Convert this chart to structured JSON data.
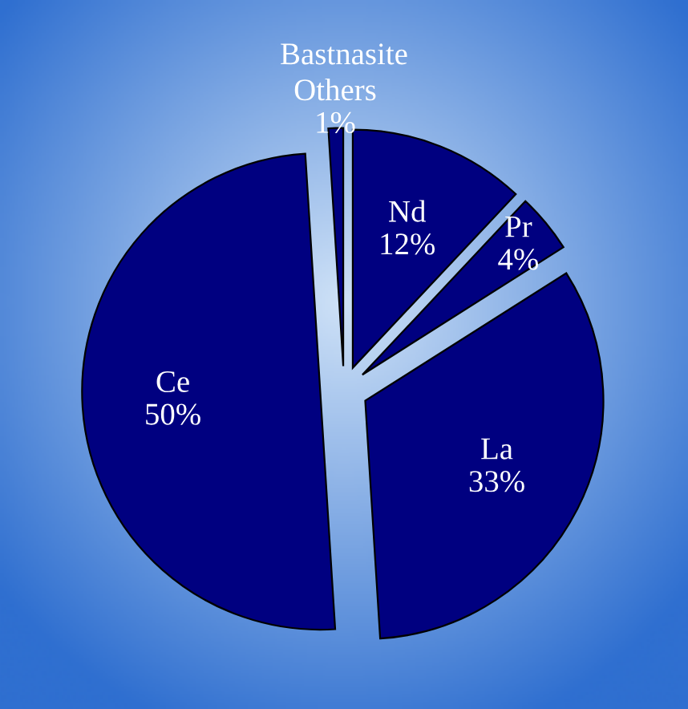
{
  "chart_data": {
    "type": "pie",
    "title": "Bastnasite",
    "categories": [
      "Nd",
      "Pr",
      "La",
      "Ce",
      "Others"
    ],
    "values": [
      12,
      4,
      33,
      50,
      1
    ],
    "value_labels": [
      "12%",
      "4%",
      "33%",
      "50%",
      "1%"
    ],
    "colors": [
      "#000080",
      "#000080",
      "#000080",
      "#000080",
      "#000080"
    ],
    "legend": false
  }
}
